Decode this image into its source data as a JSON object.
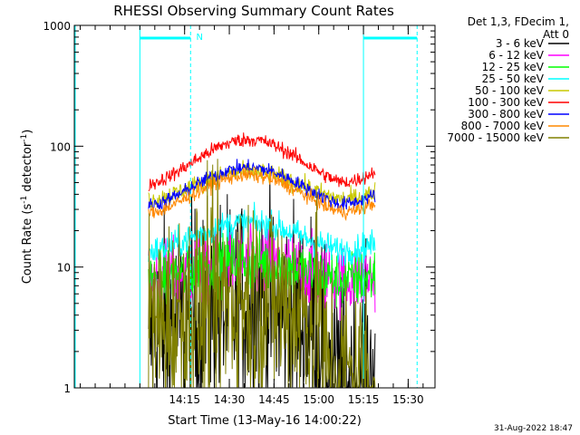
{
  "chart_data": {
    "type": "line",
    "title": "RHESSI Observing Summary Count Rates",
    "xlabel": "Start Time (13-May-16 14:00:22)",
    "ylabel_prefix": "Count Rate (s",
    "ylabel_sup": "-1",
    "ylabel_mid": " detector",
    "ylabel_sup2": "-1",
    "ylabel_suffix": ")",
    "yscale": "log",
    "ylim": [
      1,
      1000
    ],
    "xlim_min": [
      2.5,
      78.5
    ],
    "yticks": [
      {
        "v": 1,
        "label": "1"
      },
      {
        "v": 10,
        "label": "10"
      },
      {
        "v": 100,
        "label": "100"
      },
      {
        "v": 1000,
        "label": "1000"
      }
    ],
    "xticks": [
      {
        "t": 14.6,
        "label": "14:15"
      },
      {
        "t": 29.6,
        "label": "14:30"
      },
      {
        "t": 44.6,
        "label": "14:45"
      },
      {
        "t": 59.6,
        "label": "15:00"
      },
      {
        "t": 74.6,
        "label": "15:15"
      },
      {
        "t": 89.6,
        "label": "15:30"
      }
    ],
    "legend_header": [
      "Det 1,3, FDecim 1,",
      "Att 0"
    ],
    "legend_position": "right",
    "night_bars": [
      {
        "start": -0.4,
        "end": 16.6,
        "label": "N"
      },
      {
        "start": 74.6,
        "end": 92.6,
        "label": ""
      }
    ],
    "series": [
      {
        "name": "3 - 6 keV",
        "color": "#000000",
        "base": 3.5,
        "amp": 0.5,
        "noise": 0.45,
        "lowOnNight": true
      },
      {
        "name": "6 - 12 keV",
        "color": "#ff00ff",
        "base": 9,
        "amp": 0.25,
        "noise": 0.15
      },
      {
        "name": "12 - 25 keV",
        "color": "#00ff00",
        "base": 9,
        "amp": 0.3,
        "noise": 0.12
      },
      {
        "name": "25 - 50 keV",
        "color": "#00ffff",
        "base": 17,
        "amp": 0.45,
        "noise": 0.06
      },
      {
        "name": "50 - 100 keV",
        "color": "#c8c800",
        "base": 45,
        "amp": 0.45,
        "noise": 0.04
      },
      {
        "name": "100 - 300 keV",
        "color": "#ff0000",
        "base": 70,
        "amp": 0.7,
        "noise": 0.03
      },
      {
        "name": "300 - 800 keV",
        "color": "#0000ff",
        "base": 44,
        "amp": 0.6,
        "noise": 0.03
      },
      {
        "name": "800 - 7000 keV",
        "color": "#ff8800",
        "base": 38,
        "amp": 0.6,
        "noise": 0.03
      },
      {
        "name": "7000 - 15000 keV",
        "color": "#808000",
        "base": 4,
        "amp": 0.5,
        "noise": 0.45,
        "lowOnNight": true
      }
    ],
    "timestamp": "31-Aug-2022 18:47"
  }
}
